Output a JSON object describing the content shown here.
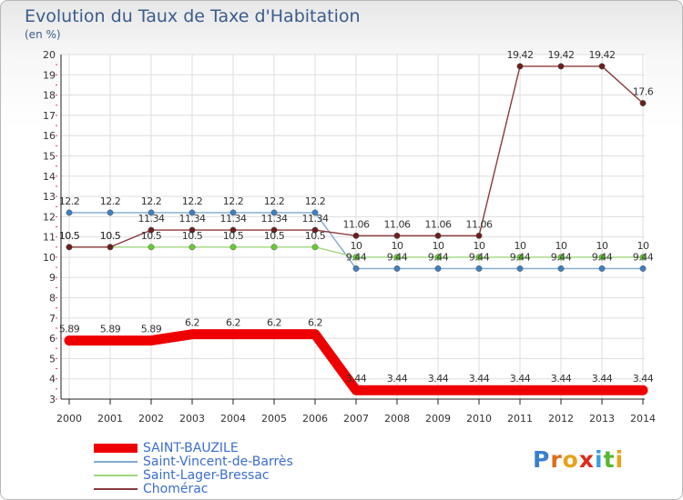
{
  "chart_data": {
    "type": "line",
    "title": "Evolution du Taux de Taxe d'Habitation",
    "unit_label": "(en %)",
    "x": [
      "2000",
      "2001",
      "2002",
      "2003",
      "2004",
      "2005",
      "2006",
      "2007",
      "2008",
      "2009",
      "2010",
      "2011",
      "2012",
      "2013",
      "2014"
    ],
    "ylim": [
      3,
      20
    ],
    "yticks": [
      3,
      4,
      5,
      6,
      7,
      8,
      9,
      10,
      11,
      12,
      13,
      14,
      15,
      16,
      17,
      18,
      19,
      20
    ],
    "grid": true,
    "legend_position": "bottom-left",
    "series": [
      {
        "name": "SAINT-BAUZILE",
        "color": "#ee0000",
        "values": [
          5.89,
          5.89,
          5.89,
          6.2,
          6.2,
          6.2,
          6.2,
          3.44,
          3.44,
          3.44,
          3.44,
          3.44,
          3.44,
          3.44,
          3.44
        ],
        "labels": [
          "5.89",
          "5.89",
          "5.89",
          "6.2",
          "6.2",
          "6.2",
          "6.2",
          "3.44",
          "3.44",
          "3.44",
          "3.44",
          "3.44",
          "3.44",
          "3.44",
          "3.44"
        ]
      },
      {
        "name": "Saint-Vincent-de-Barrès",
        "color": "#7fa9cc",
        "marker_color": "#3f7fbf",
        "values": [
          12.2,
          12.2,
          12.2,
          12.2,
          12.2,
          12.2,
          12.2,
          9.44,
          9.44,
          9.44,
          9.44,
          9.44,
          9.44,
          9.44,
          9.44
        ],
        "labels": [
          "12.2",
          "12.2",
          "12.2",
          "12.2",
          "12.2",
          "12.2",
          "12.2",
          "9.44",
          "9.44",
          "9.44",
          "9.44",
          "9.44",
          "9.44",
          "9.44",
          "9.44"
        ]
      },
      {
        "name": "Saint-Lager-Bressac",
        "color": "#9fd77f",
        "marker_color": "#66cc33",
        "values": [
          10.5,
          10.5,
          10.5,
          10.5,
          10.5,
          10.5,
          10.5,
          10,
          10,
          10,
          10,
          10,
          10,
          10,
          10
        ],
        "labels": [
          "10.5",
          "10.5",
          "10.5",
          "10.5",
          "10.5",
          "10.5",
          "10.5",
          "10",
          "10",
          "10",
          "10",
          "10",
          "10",
          "10",
          "10"
        ]
      },
      {
        "name": "Chomérac",
        "color": "#8a3a3a",
        "marker_color": "#6b1f1f",
        "values": [
          10.5,
          10.5,
          11.34,
          11.34,
          11.34,
          11.34,
          11.34,
          11.06,
          11.06,
          11.06,
          11.06,
          19.42,
          19.42,
          19.42,
          17.6
        ],
        "labels": [
          "10.5",
          "10.5",
          "11.34",
          "11.34",
          "11.34",
          "11.34",
          "11.34",
          "11.06",
          "11.06",
          "11.06",
          "11.06",
          "19.42",
          "19.42",
          "19.42",
          "17.6"
        ]
      }
    ]
  },
  "logo": {
    "letters": [
      "P",
      "r",
      "o",
      "x",
      "i",
      "t",
      "i"
    ],
    "colors": [
      "#3a7fd0",
      "#e06c1a",
      "#e8a21a",
      "#e02a1a",
      "#3aa0e0",
      "#57b82e",
      "#e8a21a"
    ]
  }
}
